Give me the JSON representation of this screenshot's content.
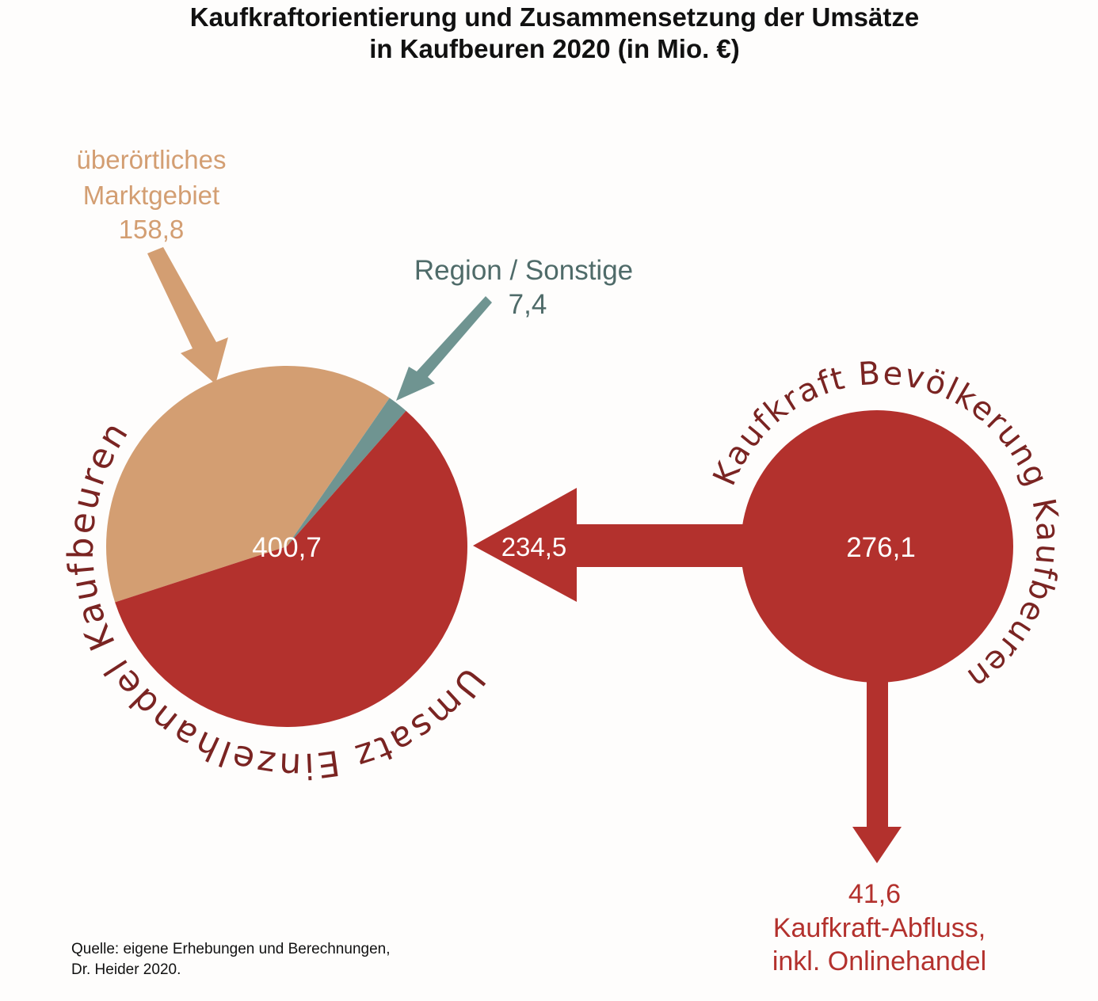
{
  "title": {
    "line1": "Kaufkraftorientierung und Zusammensetzung der Umsätze",
    "line2": "in Kaufbeuren 2020 (in Mio. €)"
  },
  "source": {
    "line1": "Quelle: eigene Erhebungen und Berechnungen,",
    "line2": "Dr. Heider 2020."
  },
  "colors": {
    "red": "#b3312d",
    "tan": "#d39e72",
    "teal": "#6f9491",
    "teal_text": "#4f6b69",
    "dark_red_text": "#7a2422"
  },
  "chart_data": {
    "type": "pie",
    "total_label": "400,7",
    "slices": [
      {
        "key": "ueberoertlich",
        "value": 158.8
      },
      {
        "key": "region",
        "value": 7.4
      },
      {
        "key": "bevoelkerung",
        "value": 234.5
      }
    ],
    "labels": {
      "ueberoertlich": {
        "line1": "überörtliches",
        "line2": "Marktgebiet",
        "value": "158,8"
      },
      "region": {
        "line1": "Region / Sonstige",
        "value": "7,4"
      },
      "flow_value": "234,5",
      "kaufkraft_total": "276,1",
      "outflow": {
        "value": "41,6",
        "line1": "Kaufkraft-Abfluss,",
        "line2": "inkl. Onlinehandel"
      }
    },
    "arc_labels": {
      "left_circle": "Umsatz Einzelhandel Kaufbeuren",
      "right_circle": "Kaufkraft Bevölkerung Kaufbeuren"
    }
  }
}
